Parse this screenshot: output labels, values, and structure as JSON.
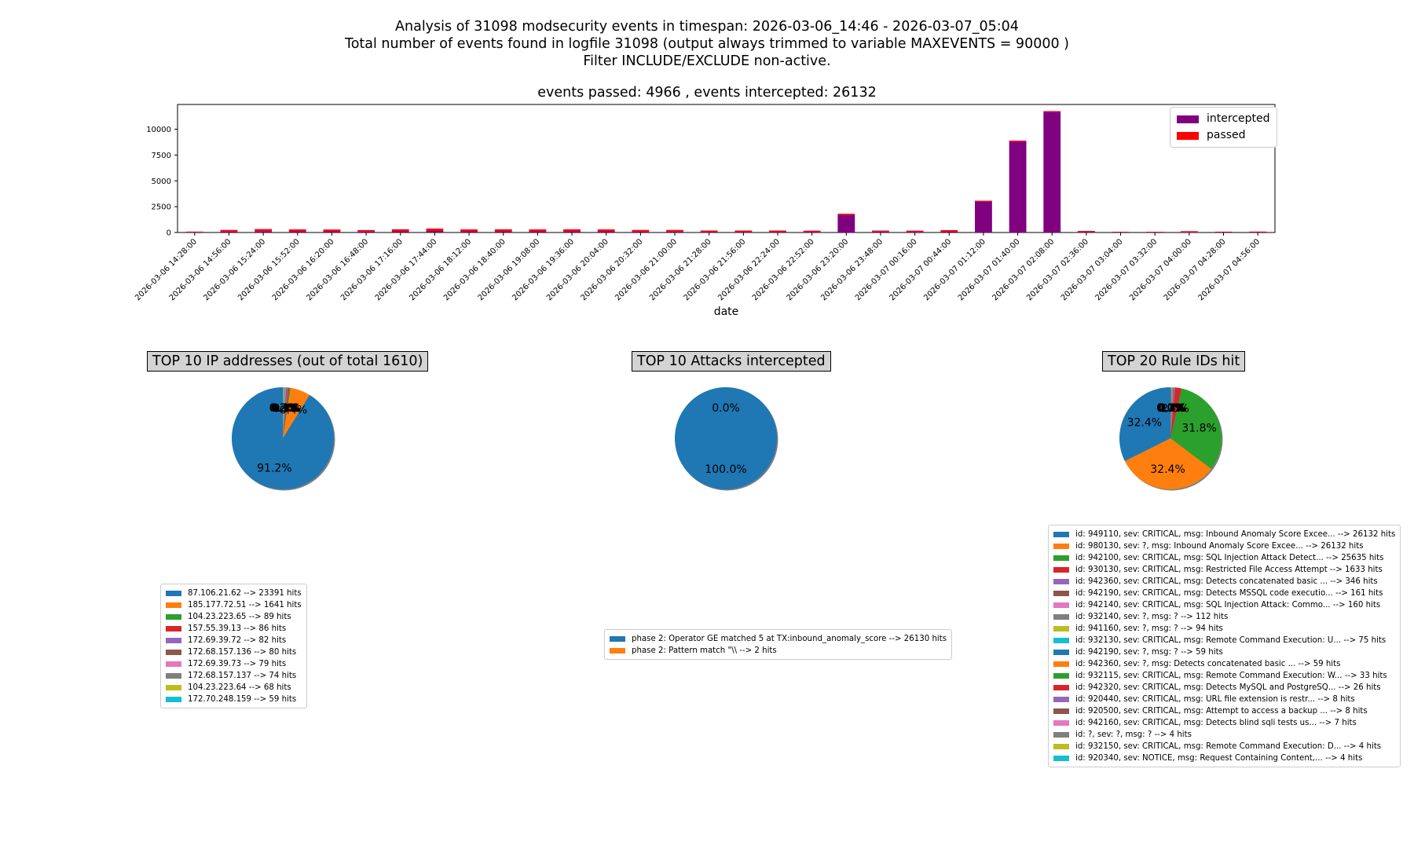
{
  "header": {
    "line1": "Analysis of 31098 modsecurity events in timespan: 2026-03-06_14:46 - 2026-03-07_05:04",
    "line2": "Total number of events found in logfile 31098 (output always trimmed to variable MAXEVENTS = 90000 )",
    "line3": "Filter INCLUDE/EXCLUDE non-active.",
    "subtitle": "events passed: 4966 , events intercepted: 26132"
  },
  "colors": {
    "intercepted": "#800080",
    "passed": "#ff0000",
    "palette": [
      "#1f77b4",
      "#ff7f0e",
      "#2ca02c",
      "#d62728",
      "#9467bd",
      "#8c564b",
      "#e377c2",
      "#7f7f7f",
      "#bcbd22",
      "#17becf"
    ]
  },
  "chart_data": [
    {
      "type": "bar",
      "stacked": true,
      "title": "events passed: 4966 , events intercepted: 26132",
      "xlabel": "date",
      "ylabel": "",
      "ylim": [
        0,
        12400
      ],
      "yticks": [
        0,
        2500,
        5000,
        7500,
        10000
      ],
      "legend": "top-right",
      "categories": [
        "2026-03-06 14:28:00",
        "2026-03-06 14:56:00",
        "2026-03-06 15:24:00",
        "2026-03-06 15:52:00",
        "2026-03-06 16:20:00",
        "2026-03-06 16:48:00",
        "2026-03-06 17:16:00",
        "2026-03-06 17:44:00",
        "2026-03-06 18:12:00",
        "2026-03-06 18:40:00",
        "2026-03-06 19:08:00",
        "2026-03-06 19:36:00",
        "2026-03-06 20:04:00",
        "2026-03-06 20:32:00",
        "2026-03-06 21:00:00",
        "2026-03-06 21:28:00",
        "2026-03-06 21:56:00",
        "2026-03-06 22:24:00",
        "2026-03-06 22:52:00",
        "2026-03-06 23:20:00",
        "2026-03-06 23:48:00",
        "2026-03-07 00:16:00",
        "2026-03-07 00:44:00",
        "2026-03-07 01:12:00",
        "2026-03-07 01:40:00",
        "2026-03-07 02:08:00",
        "2026-03-07 02:36:00",
        "2026-03-07 03:04:00",
        "2026-03-07 03:32:00",
        "2026-03-07 04:00:00",
        "2026-03-07 04:28:00",
        "2026-03-07 04:56:00"
      ],
      "series": [
        {
          "name": "intercepted",
          "values": [
            50,
            100,
            130,
            120,
            110,
            100,
            120,
            150,
            110,
            120,
            110,
            120,
            110,
            100,
            100,
            70,
            70,
            70,
            70,
            1700,
            90,
            70,
            80,
            3000,
            8800,
            11700,
            70,
            40,
            40,
            60,
            40,
            40
          ]
        },
        {
          "name": "passed",
          "values": [
            40,
            150,
            200,
            180,
            180,
            140,
            190,
            230,
            190,
            190,
            190,
            190,
            190,
            150,
            150,
            120,
            120,
            120,
            110,
            120,
            100,
            110,
            150,
            80,
            100,
            60,
            80,
            30,
            30,
            70,
            40,
            50
          ]
        }
      ]
    },
    {
      "type": "pie",
      "title": "TOP 10 IP addresses (out of total 1610)",
      "labels": [
        "87.106.21.62 --> 23391 hits",
        "185.177.72.51 --> 1641 hits",
        "104.23.223.65 --> 89 hits",
        "157.55.39.13 --> 86 hits",
        "172.69.39.72 --> 82 hits",
        "172.68.157.136 --> 80 hits",
        "172.69.39.73 --> 79 hits",
        "172.68.157.137 --> 74 hits",
        "104.23.223.64 --> 68 hits",
        "172.70.248.159 --> 59 hits"
      ],
      "values": [
        23391,
        1641,
        89,
        86,
        82,
        80,
        79,
        74,
        68,
        59
      ],
      "pct_labels": [
        "91.2%",
        "6.4%",
        "0.3%",
        "0.3%",
        "0.3%",
        "0.3%",
        "0.3%",
        "0.3%",
        "0.3%",
        "0.2%"
      ]
    },
    {
      "type": "pie",
      "title": "TOP 10 Attacks intercepted",
      "labels": [
        "phase 2: Operator GE matched 5 at TX:inbound_anomaly_score --> 26130 hits",
        "phase 2: Pattern match \"\\\\ --> 2 hits"
      ],
      "values": [
        26130,
        2
      ],
      "pct_labels": [
        "100.0%",
        "0.0%"
      ]
    },
    {
      "type": "pie",
      "title": "TOP 20 Rule IDs hit",
      "labels": [
        "id: 949110, sev: CRITICAL, msg: Inbound Anomaly Score Excee... --> 26132 hits",
        "id: 980130, sev: ?, msg: Inbound Anomaly Score Excee... --> 26132 hits",
        "id: 942100, sev: CRITICAL, msg: SQL Injection Attack Detect... --> 25635 hits",
        "id: 930130, sev: CRITICAL, msg: Restricted File Access Attempt --> 1633 hits",
        "id: 942360, sev: CRITICAL, msg: Detects concatenated basic ... --> 346 hits",
        "id: 942190, sev: CRITICAL, msg: Detects MSSQL code executio... --> 161 hits",
        "id: 942140, sev: CRITICAL, msg: SQL Injection Attack: Commo... --> 160 hits",
        "id: 932140, sev: ?, msg: ? --> 112 hits",
        "id: 941160, sev: ?, msg: ? --> 94 hits",
        "id: 932130, sev: CRITICAL, msg: Remote Command Execution: U... --> 75 hits",
        "id: 942190, sev: ?, msg: ? --> 59 hits",
        "id: 942360, sev: ?, msg: Detects concatenated basic ... --> 59 hits",
        "id: 932115, sev: CRITICAL, msg: Remote Command Execution: W... --> 33 hits",
        "id: 942320, sev: CRITICAL, msg: Detects MySQL and PostgreSQ... --> 26 hits",
        "id: 920440, sev: CRITICAL, msg: URL file extension is restr... --> 8 hits",
        "id: 920500, sev: CRITICAL, msg: Attempt to access a backup ... --> 8 hits",
        "id: 942160, sev: CRITICAL, msg: Detects blind sqli tests us... --> 7 hits",
        "id: ?, sev: ?, msg: ? --> 4 hits",
        "id: 932150, sev: CRITICAL, msg: Remote Command Execution: D... --> 4 hits",
        "id: 920340, sev: NOTICE, msg: Request Containing Content,... --> 4 hits"
      ],
      "values": [
        26132,
        26132,
        25635,
        1633,
        346,
        161,
        160,
        112,
        94,
        75,
        59,
        59,
        33,
        26,
        8,
        8,
        7,
        4,
        4,
        4
      ],
      "pct_labels": [
        "32.4%",
        "32.4%",
        "31.8%",
        "2.0%",
        "0.4%",
        "0.2%",
        "0.2%",
        "0.1%",
        "0.1%",
        "0.1%",
        "0.1%",
        "0.1%",
        "0.0%",
        "0.0%",
        "0.0%",
        "0.0%",
        "0.0%",
        "0.0%",
        "0.0%",
        "0.0%"
      ]
    }
  ]
}
